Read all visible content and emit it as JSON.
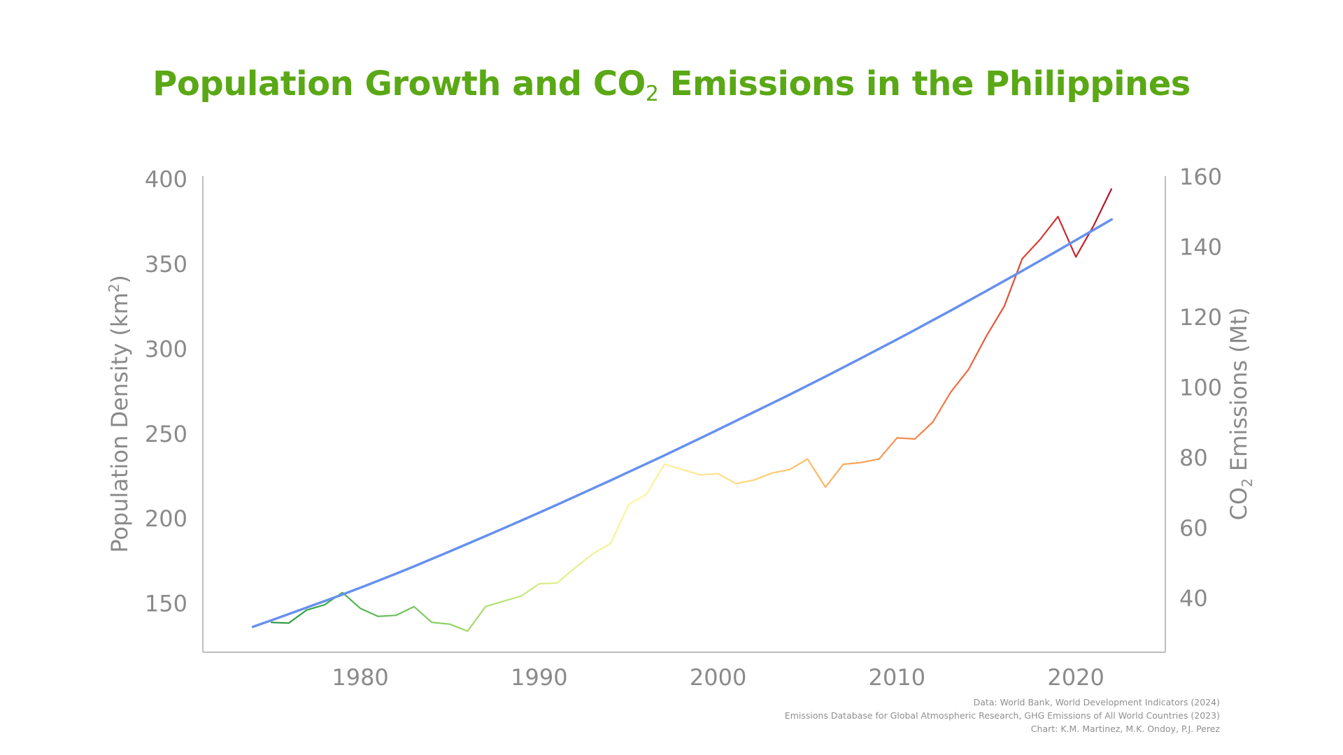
{
  "title": {
    "main": "Population Growth and CO",
    "subscript": "2",
    "rest": " Emissions in the Philippines"
  },
  "sources": [
    "Data: World Bank, World Development Indicators (2024)",
    "Emissions Database for Global Atmospheric Research, GHG Emissions of All World Countries (2023)",
    "Chart: K.M. Martinez, M.K. Ondoy, P.J. Perez"
  ],
  "chart_data": {
    "type": "line",
    "x_ticks": [
      1980,
      1990,
      2000,
      2010,
      2020
    ],
    "xlim": [
      1971.2,
      2025
    ],
    "y_left": {
      "label_main": "Population Density (km",
      "label_sup": "2",
      "label_end": ")",
      "ticks": [
        150,
        200,
        250,
        300,
        350,
        400
      ],
      "ylim": [
        121,
        401.5
      ]
    },
    "y_right": {
      "label_main": "CO",
      "label_sub": "2",
      "label_end": " Emissions (Mt)",
      "ticks": [
        40,
        60,
        80,
        100,
        120,
        140,
        160
      ],
      "ylim": [
        24.5,
        160
      ]
    },
    "series": [
      {
        "axis": "left",
        "color": "#6690ee",
        "x": [
          1974,
          1975,
          1976,
          1977,
          1978,
          1979,
          1980,
          1981,
          1982,
          1983,
          1984,
          1985,
          1986,
          1987,
          1988,
          1989,
          1990,
          1991,
          1992,
          1993,
          1994,
          1995,
          1996,
          1997,
          1998,
          1999,
          2000,
          2001,
          2002,
          2003,
          2004,
          2005,
          2006,
          2007,
          2008,
          2009,
          2010,
          2011,
          2012,
          2013,
          2014,
          2015,
          2016,
          2017,
          2018,
          2019,
          2020,
          2021,
          2022
        ],
        "y": [
          136,
          139.7,
          143.5,
          147.3,
          151.1,
          155,
          159,
          163.1,
          167.3,
          171.6,
          176,
          180.4,
          184.9,
          189.4,
          194,
          198.6,
          203.2,
          207.9,
          212.7,
          217.5,
          222.3,
          227.2,
          232.1,
          237,
          242,
          247.1,
          252.2,
          257.3,
          262.5,
          267.6,
          272.8,
          278.1,
          283.4,
          288.8,
          294.3,
          299.8,
          305.3,
          310.9,
          316.6,
          322.3,
          328.1,
          333.9,
          339.8,
          345.7,
          351.7,
          357.7,
          363.8,
          369.9,
          376
        ]
      },
      {
        "axis": "right",
        "color_gradient": [
          "#1a8a3c",
          "#3aa64a",
          "#6cc05c",
          "#a8dc6e",
          "#dff08a",
          "#fff5a0",
          "#ffe08a",
          "#ffc06a",
          "#f99a52",
          "#f06e42",
          "#d83a30",
          "#a8102a"
        ],
        "x": [
          1975,
          1976,
          1977,
          1978,
          1979,
          1980,
          1981,
          1982,
          1983,
          1984,
          1985,
          1986,
          1987,
          1988,
          1989,
          1990,
          1991,
          1992,
          1993,
          1994,
          1995,
          1996,
          1997,
          1998,
          1999,
          2000,
          2001,
          2002,
          2003,
          2004,
          2005,
          2006,
          2007,
          2008,
          2009,
          2010,
          2011,
          2012,
          2013,
          2014,
          2015,
          2016,
          2017,
          2018,
          2019,
          2020,
          2021,
          2022
        ],
        "y": [
          33,
          32.8,
          36.5,
          38,
          41.5,
          37,
          34.7,
          35,
          37.5,
          33,
          32.5,
          30.5,
          37.5,
          39,
          40.5,
          44,
          44.2,
          48.5,
          52.5,
          55.5,
          66.5,
          69.5,
          78,
          76.5,
          75,
          75.3,
          72.5,
          73.5,
          75.5,
          76.5,
          79.5,
          71.5,
          78,
          78.5,
          79.5,
          85.5,
          85.2,
          90,
          98.5,
          105,
          114.5,
          123,
          136.5,
          142,
          148.5,
          137,
          146,
          156.5
        ]
      }
    ],
    "grid": false,
    "legend": "none"
  }
}
